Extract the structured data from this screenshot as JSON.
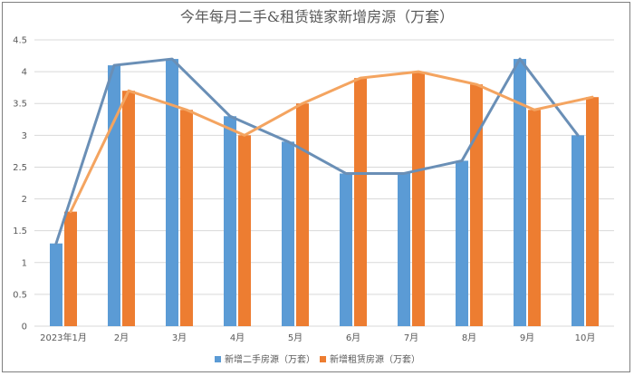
{
  "chart_data": {
    "type": "bar",
    "title": "今年每月二手&租赁链家新增房源（万套）",
    "categories": [
      "2023年1月",
      "2月",
      "3月",
      "4月",
      "5月",
      "6月",
      "7月",
      "8月",
      "9月",
      "10月"
    ],
    "ylim": [
      0,
      4.5
    ],
    "yticks": [
      "0",
      "0.5",
      "1",
      "1.5",
      "2",
      "2.5",
      "3",
      "3.5",
      "4",
      "4.5"
    ],
    "ytick_values": [
      0,
      0.5,
      1,
      1.5,
      2,
      2.5,
      3,
      3.5,
      4,
      4.5
    ],
    "grid": true,
    "legend_position": "bottom",
    "series": [
      {
        "name": "新增二手房源（万套）",
        "color": "#5b9bd5",
        "line_color": "#6a8fb6",
        "values": [
          1.3,
          4.1,
          4.2,
          3.3,
          2.9,
          2.4,
          2.4,
          2.6,
          4.2,
          3.0
        ]
      },
      {
        "name": "新增租赁房源（万套）",
        "color": "#ed7d31",
        "line_color": "#f4a460",
        "values": [
          1.8,
          3.7,
          3.4,
          3.0,
          3.5,
          3.9,
          4.0,
          3.8,
          3.4,
          3.6
        ]
      }
    ]
  }
}
